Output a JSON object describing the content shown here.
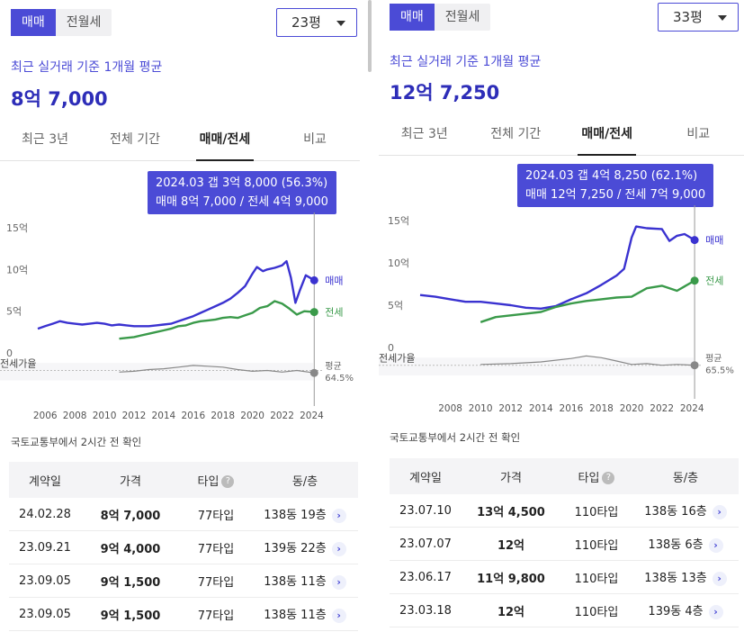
{
  "colors": {
    "accent": "#4b4bd6",
    "sale": "#3a32d0",
    "jeonse": "#3a9a4a",
    "ratio": "#888888"
  },
  "panels": [
    {
      "trade_tabs": [
        "매매",
        "전월세"
      ],
      "size_label": "23평",
      "avg_caption": "최근 실거래 기준 1개월 평균",
      "avg_value": "8억 7,000",
      "period_tabs": [
        "최근 3년",
        "전체 기간",
        "매매/전세",
        "비교"
      ],
      "tooltip": {
        "line1": "2024.03  갭 3억 8,000 (56.3%)",
        "line2": "매매 8억 7,000 / 전세 4억 9,000"
      },
      "source": "국토교통부에서 2시간 전 확인",
      "table": {
        "headers": [
          "계약일",
          "가격",
          "타입",
          "동/층"
        ],
        "rows": [
          {
            "date": "24.02.28",
            "price": "8억 7,000",
            "type": "77타입",
            "unit": "138동 19층"
          },
          {
            "date": "23.09.21",
            "price": "9억 4,000",
            "type": "77타입",
            "unit": "139동 22층"
          },
          {
            "date": "23.09.05",
            "price": "9억 1,500",
            "type": "77타입",
            "unit": "138동 11층"
          },
          {
            "date": "23.09.05",
            "price": "9억 1,500",
            "type": "77타입",
            "unit": "138동 11층"
          }
        ]
      }
    },
    {
      "trade_tabs": [
        "매매",
        "전월세"
      ],
      "size_label": "33평",
      "avg_caption": "최근 실거래 기준 1개월 평균",
      "avg_value": "12억 7,250",
      "period_tabs": [
        "최근 3년",
        "전체 기간",
        "매매/전세",
        "비교"
      ],
      "tooltip": {
        "line1": "2024.03  갭 4억 8,250 (62.1%)",
        "line2": "매매 12억 7,250 / 전세 7억 9,000"
      },
      "source": "국토교통부에서 2시간 전 확인",
      "table": {
        "headers": [
          "계약일",
          "가격",
          "타입",
          "동/층"
        ],
        "rows": [
          {
            "date": "23.07.10",
            "price": "13억 4,500",
            "type": "110타입",
            "unit": "138동 16층"
          },
          {
            "date": "23.07.07",
            "price": "12억",
            "type": "110타입",
            "unit": "138동 6층"
          },
          {
            "date": "23.06.17",
            "price": "11억 9,800",
            "type": "110타입",
            "unit": "138동 13층"
          },
          {
            "date": "23.03.18",
            "price": "12억",
            "type": "110타입",
            "unit": "139동 4층"
          }
        ]
      }
    }
  ],
  "chart_data": [
    {
      "type": "line",
      "y_ticks": [
        "15억",
        "10억",
        "5억",
        "0"
      ],
      "ylim": [
        0,
        15
      ],
      "xlim": [
        2005.5,
        2024.7
      ],
      "x_ticks": [
        "2006",
        "2008",
        "2010",
        "2012",
        "2014",
        "2016",
        "2018",
        "2020",
        "2022",
        "2024"
      ],
      "ratio_label": "전세가율",
      "ratio_end_label": "평균",
      "ratio_end_value": "64.5%",
      "series": [
        {
          "name": "매매",
          "points": [
            [
              2005.5,
              2.9
            ],
            [
              2006,
              3.2
            ],
            [
              2006.5,
              3.5
            ],
            [
              2007,
              3.8
            ],
            [
              2007.5,
              3.6
            ],
            [
              2008,
              3.5
            ],
            [
              2008.5,
              3.4
            ],
            [
              2009,
              3.5
            ],
            [
              2009.5,
              3.6
            ],
            [
              2010,
              3.5
            ],
            [
              2010.5,
              3.3
            ],
            [
              2011,
              3.4
            ],
            [
              2011.5,
              3.3
            ],
            [
              2012,
              3.2
            ],
            [
              2012.5,
              3.2
            ],
            [
              2013,
              3.2
            ],
            [
              2013.5,
              3.3
            ],
            [
              2014,
              3.4
            ],
            [
              2014.5,
              3.5
            ],
            [
              2015,
              3.8
            ],
            [
              2015.5,
              4.1
            ],
            [
              2016,
              4.4
            ],
            [
              2016.5,
              4.8
            ],
            [
              2017,
              5.2
            ],
            [
              2017.5,
              5.6
            ],
            [
              2018,
              6.0
            ],
            [
              2018.5,
              6.5
            ],
            [
              2019,
              7.2
            ],
            [
              2019.5,
              8.0
            ],
            [
              2020,
              9.5
            ],
            [
              2020.3,
              10.3
            ],
            [
              2020.7,
              9.8
            ],
            [
              2021,
              10.0
            ],
            [
              2021.5,
              10.2
            ],
            [
              2022,
              10.5
            ],
            [
              2022.3,
              11.0
            ],
            [
              2022.6,
              9.0
            ],
            [
              2022.9,
              6.0
            ],
            [
              2023.2,
              7.5
            ],
            [
              2023.6,
              9.3
            ],
            [
              2023.8,
              9.1
            ],
            [
              2024.17,
              8.7
            ]
          ]
        },
        {
          "name": "전세",
          "points": [
            [
              2011,
              1.7
            ],
            [
              2011.5,
              1.8
            ],
            [
              2012,
              1.9
            ],
            [
              2012.5,
              2.1
            ],
            [
              2013,
              2.3
            ],
            [
              2013.5,
              2.5
            ],
            [
              2014,
              2.7
            ],
            [
              2014.5,
              2.9
            ],
            [
              2015,
              3.2
            ],
            [
              2015.5,
              3.3
            ],
            [
              2016,
              3.6
            ],
            [
              2016.5,
              3.8
            ],
            [
              2017,
              3.9
            ],
            [
              2017.5,
              4.0
            ],
            [
              2018,
              4.2
            ],
            [
              2018.5,
              4.3
            ],
            [
              2019,
              4.2
            ],
            [
              2019.5,
              4.5
            ],
            [
              2020,
              4.8
            ],
            [
              2020.5,
              5.4
            ],
            [
              2021,
              5.6
            ],
            [
              2021.5,
              6.2
            ],
            [
              2022,
              5.9
            ],
            [
              2022.5,
              5.3
            ],
            [
              2023,
              4.6
            ],
            [
              2023.5,
              5.0
            ],
            [
              2024.17,
              4.9
            ]
          ]
        },
        {
          "name": "전세가율",
          "points": [
            [
              2011,
              -2.3
            ],
            [
              2012,
              -2.2
            ],
            [
              2013,
              -2.0
            ],
            [
              2014,
              -1.9
            ],
            [
              2015,
              -1.7
            ],
            [
              2016,
              -1.5
            ],
            [
              2017,
              -1.6
            ],
            [
              2018,
              -1.7
            ],
            [
              2019,
              -2.0
            ],
            [
              2020,
              -2.2
            ],
            [
              2021,
              -2.1
            ],
            [
              2022,
              -2.3
            ],
            [
              2023,
              -2.1
            ],
            [
              2024.17,
              -2.4
            ]
          ]
        }
      ],
      "end_labels": [
        "매매",
        "전세"
      ]
    },
    {
      "type": "line",
      "y_ticks": [
        "15억",
        "10억",
        "5억",
        "0"
      ],
      "ylim": [
        0,
        15
      ],
      "xlim": [
        2006,
        2024.7
      ],
      "x_ticks": [
        "2008",
        "2010",
        "2012",
        "2014",
        "2016",
        "2018",
        "2020",
        "2022",
        "2024"
      ],
      "ratio_label": "전세가율",
      "ratio_end_label": "평균",
      "ratio_end_value": "65.5%",
      "series": [
        {
          "name": "매매",
          "points": [
            [
              2006,
              6.2
            ],
            [
              2007,
              6.0
            ],
            [
              2008,
              5.7
            ],
            [
              2009,
              5.4
            ],
            [
              2010,
              5.4
            ],
            [
              2011,
              5.2
            ],
            [
              2012,
              5.0
            ],
            [
              2013,
              4.7
            ],
            [
              2014,
              4.6
            ],
            [
              2015,
              4.9
            ],
            [
              2016,
              5.7
            ],
            [
              2017,
              6.4
            ],
            [
              2018,
              7.4
            ],
            [
              2019,
              8.5
            ],
            [
              2019.5,
              9.3
            ],
            [
              2020,
              13.0
            ],
            [
              2020.3,
              14.3
            ],
            [
              2021,
              14.1
            ],
            [
              2022,
              14.0
            ],
            [
              2022.5,
              12.6
            ],
            [
              2023,
              13.2
            ],
            [
              2023.5,
              13.4
            ],
            [
              2024.17,
              12.7
            ]
          ]
        },
        {
          "name": "전세",
          "points": [
            [
              2010,
              3.0
            ],
            [
              2011,
              3.6
            ],
            [
              2012,
              3.8
            ],
            [
              2013,
              4.0
            ],
            [
              2014,
              4.2
            ],
            [
              2015,
              4.8
            ],
            [
              2016,
              5.2
            ],
            [
              2017,
              5.5
            ],
            [
              2018,
              5.7
            ],
            [
              2019,
              5.9
            ],
            [
              2020,
              6.0
            ],
            [
              2021,
              7.0
            ],
            [
              2022,
              7.3
            ],
            [
              2023,
              6.7
            ],
            [
              2024.17,
              7.9
            ]
          ]
        },
        {
          "name": "전세가율",
          "points": [
            [
              2010,
              -2.0
            ],
            [
              2012,
              -1.9
            ],
            [
              2014,
              -1.7
            ],
            [
              2016,
              -1.3
            ],
            [
              2017,
              -1.0
            ],
            [
              2018,
              -1.2
            ],
            [
              2019,
              -1.6
            ],
            [
              2020,
              -2.0
            ],
            [
              2021,
              -1.9
            ],
            [
              2022,
              -2.1
            ],
            [
              2023,
              -2.0
            ],
            [
              2024.17,
              -2.1
            ]
          ]
        }
      ],
      "end_labels": [
        "매매",
        "전세"
      ]
    }
  ]
}
